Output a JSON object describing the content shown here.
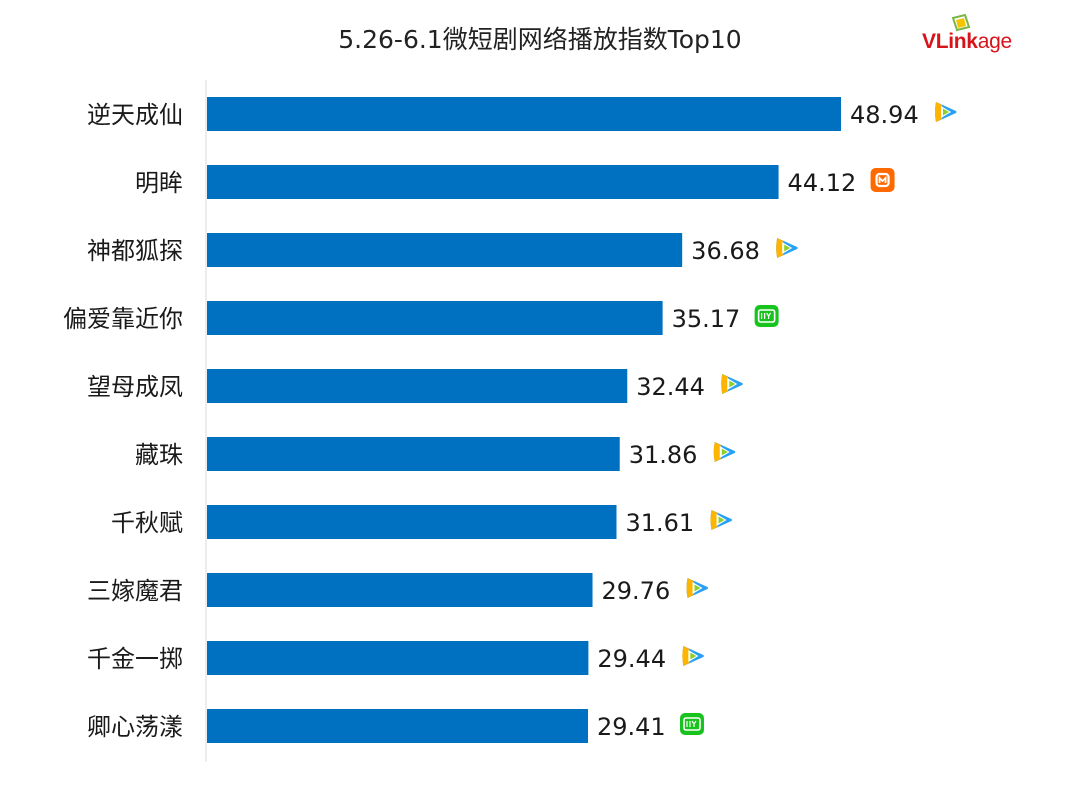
{
  "title": "5.26-6.1微短剧网络播放指数Top10",
  "logo": {
    "text_v": "VLink",
    "text_age": "age",
    "color": "#d7141a"
  },
  "colors": {
    "bar": "#0070c0",
    "axis": "#d9d9d9",
    "tencent": "#2aa0f5",
    "mango": "#ff6a00",
    "iqiyi": "#19c31d"
  },
  "chart_data": {
    "type": "bar",
    "orientation": "horizontal",
    "title": "5.26-6.1微短剧网络播放指数Top10",
    "categories": [
      "逆天成仙",
      "明眸",
      "神都狐探",
      "偏爱靠近你",
      "望母成凤",
      "藏珠",
      "千秋赋",
      "三嫁魔君",
      "千金一掷",
      "卿心荡漾"
    ],
    "values": [
      48.94,
      44.12,
      36.68,
      35.17,
      32.44,
      31.86,
      31.61,
      29.76,
      29.44,
      29.41
    ],
    "platform_icons": [
      "tencent-video-icon",
      "mango-tv-icon",
      "tencent-video-icon",
      "iqiyi-icon",
      "tencent-video-icon",
      "tencent-video-icon",
      "tencent-video-icon",
      "tencent-video-icon",
      "tencent-video-icon",
      "iqiyi-icon"
    ],
    "xlim": [
      0,
      48.94
    ],
    "grid": false,
    "legend": "none"
  }
}
